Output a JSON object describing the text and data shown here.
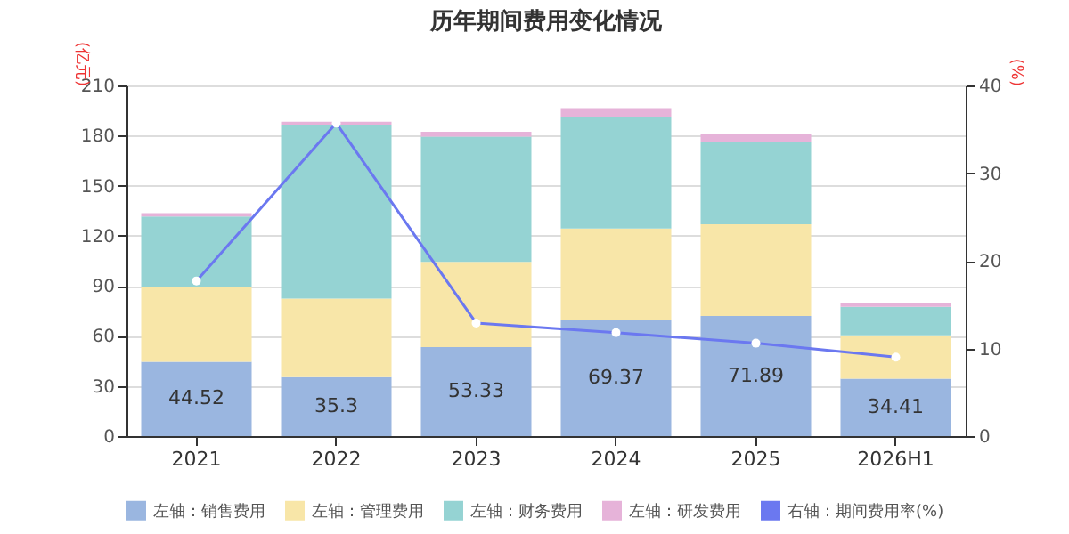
{
  "chart_data": {
    "type": "bar",
    "title": "历年期间费用变化情况",
    "ylabel": "(亿元)",
    "y2label": "(%)",
    "categories": [
      "2021",
      "2022",
      "2023",
      "2024",
      "2025",
      "2026H1"
    ],
    "stacked": true,
    "ylim": [
      0,
      210
    ],
    "yticks": [
      0,
      30,
      60,
      90,
      120,
      150,
      180,
      210
    ],
    "y2lim": [
      0,
      40
    ],
    "y2ticks": [
      0,
      10,
      20,
      30,
      40
    ],
    "grid": "y",
    "legend": "bottom",
    "series": [
      {
        "name": "左轴：销售费用",
        "color": "#9ab6e0",
        "values": [
          44.52,
          35.3,
          53.33,
          69.37,
          71.89,
          34.41
        ],
        "value_labels": [
          "44.52",
          "35.3",
          "53.33",
          "69.37",
          "71.89",
          "34.41"
        ]
      },
      {
        "name": "左轴：管理费用",
        "color": "#f8e6a8",
        "values": [
          45,
          47,
          51,
          55,
          55,
          26
        ]
      },
      {
        "name": "左轴：财务费用",
        "color": "#95d3d3",
        "values": [
          42,
          104,
          75,
          67,
          49,
          17
        ]
      },
      {
        "name": "左轴：研发费用",
        "color": "#e6b3d9",
        "values": [
          2,
          2,
          3,
          5,
          5,
          2
        ]
      },
      {
        "name": "右轴：期间费用率(%)",
        "color": "#6b78f0",
        "type": "line",
        "axis": "y2",
        "marker": "circle",
        "values": [
          17.7,
          35.7,
          12.9,
          11.8,
          10.6,
          9.0
        ]
      }
    ]
  }
}
